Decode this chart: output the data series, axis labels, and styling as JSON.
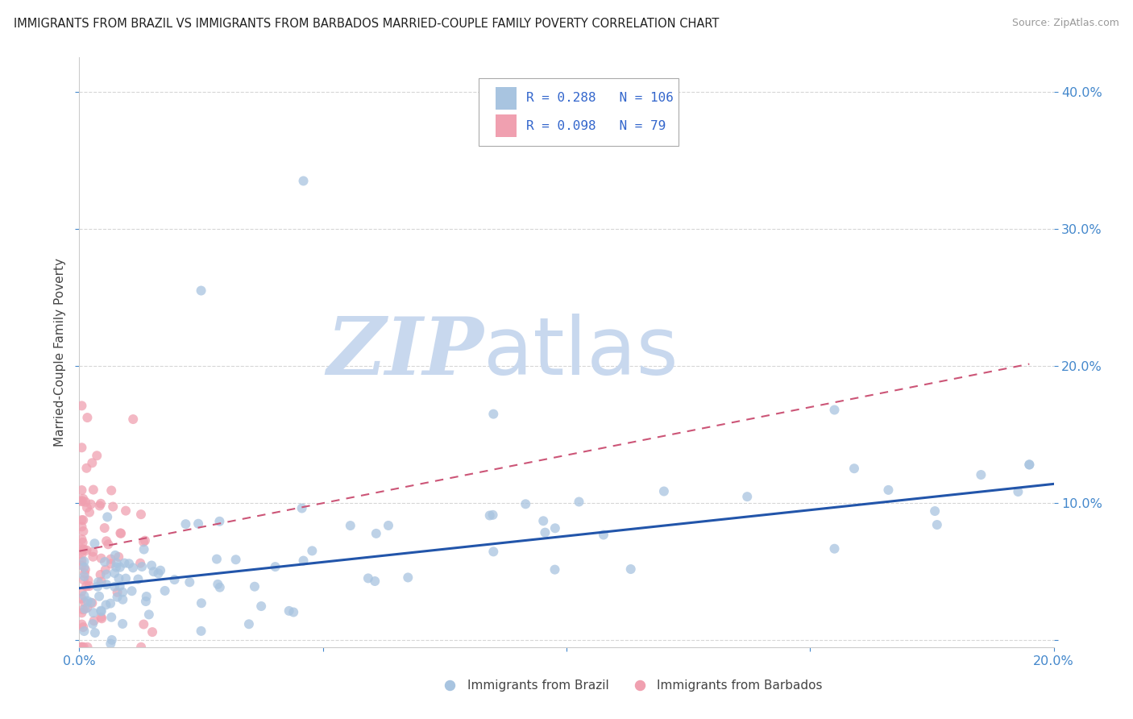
{
  "title": "IMMIGRANTS FROM BRAZIL VS IMMIGRANTS FROM BARBADOS MARRIED-COUPLE FAMILY POVERTY CORRELATION CHART",
  "source": "Source: ZipAtlas.com",
  "xlabel_brazil": "Immigrants from Brazil",
  "xlabel_barbados": "Immigrants from Barbados",
  "ylabel": "Married-Couple Family Poverty",
  "brazil_R": 0.288,
  "brazil_N": 106,
  "barbados_R": 0.098,
  "barbados_N": 79,
  "brazil_color": "#a8c4e0",
  "barbados_color": "#f0a0b0",
  "brazil_line_color": "#2255aa",
  "barbados_line_color": "#cc5577",
  "watermark_zip": "ZIP",
  "watermark_atlas": "atlas",
  "xmin": 0.0,
  "xmax": 0.2,
  "ymin": -0.005,
  "ymax": 0.425,
  "title_color": "#222222",
  "source_color": "#999999",
  "axis_label_color": "#444444",
  "tick_label_color": "#4488cc",
  "legend_color": "#3366cc",
  "grid_color": "#cccccc",
  "watermark_zip_color": "#c8d8ee",
  "watermark_atlas_color": "#c8d8ee",
  "brazil_intercept": 0.038,
  "brazil_slope_per_unit": 0.38,
  "barbados_intercept": 0.065,
  "barbados_slope_per_unit": 0.7
}
